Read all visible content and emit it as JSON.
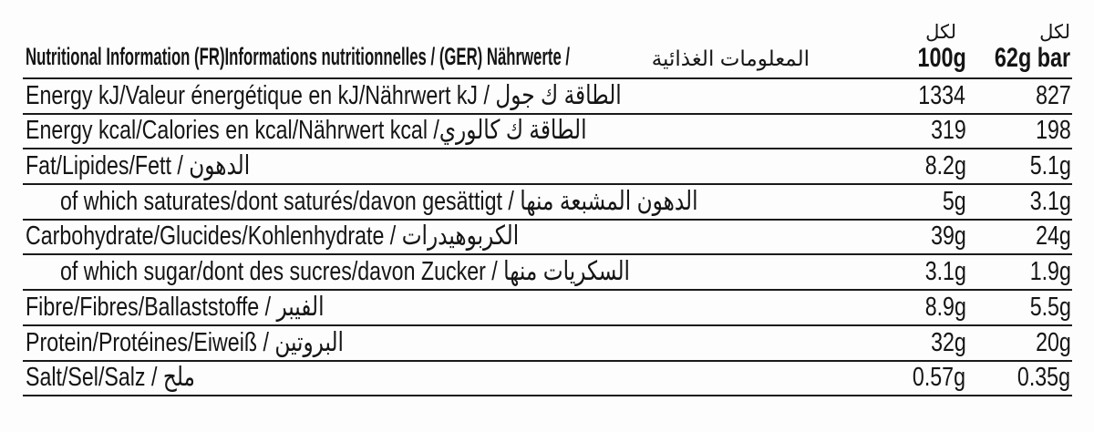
{
  "header": {
    "title": "Nutritional Information (FR)Informations nutritionnelles / (GER) Nährwerte /",
    "title_ar": "المعلومات الغذائية",
    "col_per100g": {
      "per": "لكل",
      "amount": "100g"
    },
    "col_per_bar": {
      "per": "لكل",
      "amount": "62g bar"
    }
  },
  "rows": [
    {
      "label": "Energy  kJ/Valeur énergétique en kJ/Nährwert kJ / الطاقة ك جول",
      "per100g": "1334",
      "per_bar": "827"
    },
    {
      "label": "Energy kcal/Calories en kcal/Nährwert kcal /الطاقة ك كالوري",
      "per100g": "319",
      "per_bar": "198"
    },
    {
      "label": "Fat/Lipides/Fett / الدهون",
      "per100g": "8.2g",
      "per_bar": "5.1g"
    },
    {
      "label": "of which saturates/dont saturés/davon gesättigt / الدهون المشبعة منها",
      "per100g": "5g",
      "per_bar": "3.1g"
    },
    {
      "label": "Carbohydrate/Glucides/Kohlenhydrate / الكربوهيدرات",
      "per100g": "39g",
      "per_bar": "24g"
    },
    {
      "label": "of which sugar/dont des sucres/davon Zucker / السكريات منها",
      "per100g": "3.1g",
      "per_bar": "1.9g"
    },
    {
      "label": "Fibre/Fibres/Ballaststoffe / الفيبر",
      "per100g": "8.9g",
      "per_bar": "5.5g"
    },
    {
      "label": "Protein/Protéines/Eiweiß / البروتين",
      "per100g": "32g",
      "per_bar": "20g"
    },
    {
      "label": "Salt/Sel/Salz / ملح",
      "per100g": "0.57g",
      "per_bar": "0.35g"
    }
  ],
  "colors": {
    "text": "#151515",
    "line": "#1a1a1a",
    "background": "#fdfdfd"
  }
}
